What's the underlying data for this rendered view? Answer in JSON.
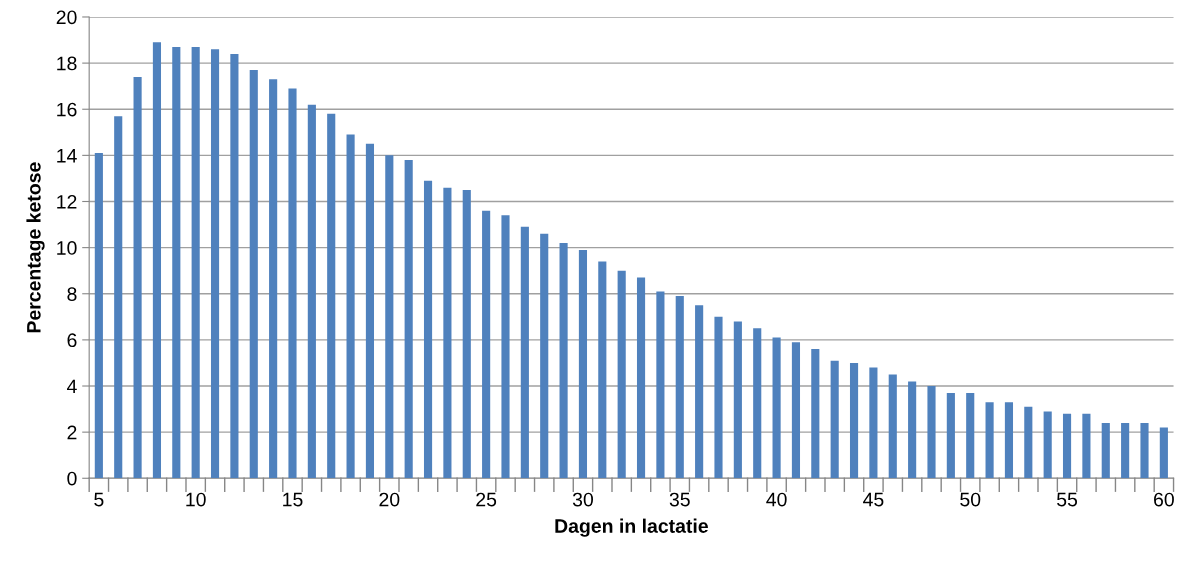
{
  "chart_data": {
    "type": "bar",
    "xlabel": "Dagen in lactatie",
    "ylabel": "Percentage ketose",
    "categories": [
      "5",
      null,
      null,
      null,
      null,
      "10",
      null,
      null,
      null,
      null,
      "15",
      null,
      null,
      null,
      null,
      "20",
      null,
      null,
      null,
      null,
      "25",
      null,
      null,
      null,
      null,
      "30",
      null,
      null,
      null,
      null,
      "35",
      null,
      null,
      null,
      null,
      "40",
      null,
      null,
      null,
      null,
      "45",
      null,
      null,
      null,
      null,
      "50",
      null,
      null,
      null,
      null,
      "55",
      null,
      null,
      null,
      null,
      "60"
    ],
    "values": [
      14.1,
      15.7,
      17.4,
      18.9,
      18.7,
      18.7,
      18.6,
      18.4,
      17.7,
      17.3,
      16.9,
      16.2,
      15.8,
      14.9,
      14.5,
      14.0,
      13.8,
      12.9,
      12.6,
      12.5,
      11.6,
      11.4,
      10.9,
      10.6,
      10.2,
      9.9,
      9.4,
      9.0,
      8.7,
      8.1,
      7.9,
      7.5,
      7.0,
      6.8,
      6.5,
      6.1,
      5.9,
      5.6,
      5.1,
      5.0,
      4.8,
      4.5,
      4.2,
      4.0,
      3.7,
      3.7,
      3.3,
      3.3,
      3.1,
      2.9,
      2.8,
      2.8,
      2.4,
      2.4,
      2.4,
      2.2
    ],
    "color": "#4f81bd",
    "ylim": [
      0,
      20
    ],
    "yticks": [
      0,
      2,
      4,
      6,
      8,
      10,
      12,
      14,
      16,
      18,
      20
    ],
    "grid": "y"
  }
}
